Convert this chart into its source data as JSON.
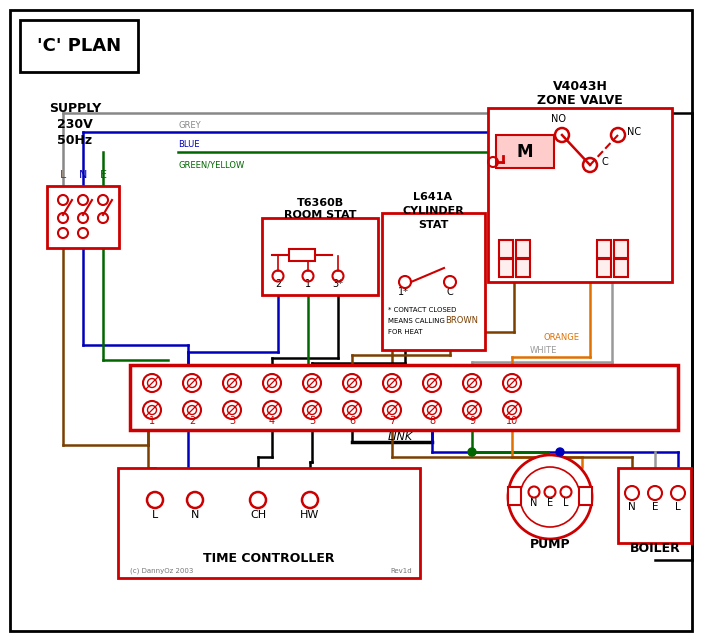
{
  "title": "'C' PLAN",
  "bg_color": "#ffffff",
  "red": "#cc0000",
  "black": "#000000",
  "blue": "#0000bb",
  "grey": "#888888",
  "green": "#006600",
  "brown": "#7B3F00",
  "orange": "#E07000",
  "white_wire": "#999999",
  "supply_lines": [
    "SUPPLY",
    "230V",
    "50Hz"
  ],
  "zone_valve_lines": [
    "V4043H",
    "ZONE VALVE"
  ],
  "room_stat_lines": [
    "T6360B",
    "ROOM STAT"
  ],
  "cyl_stat_lines": [
    "L641A",
    "CYLINDER",
    "STAT"
  ],
  "wire_labels": {
    "grey": "GREY",
    "blue": "BLUE",
    "green_yellow": "GREEN/YELLOW",
    "brown": "BROWN",
    "white": "WHITE",
    "orange": "ORANGE"
  },
  "terminal_labels": [
    "1",
    "2",
    "3",
    "4",
    "5",
    "6",
    "7",
    "8",
    "9",
    "10"
  ],
  "tc_terminals": [
    "L",
    "N",
    "CH",
    "HW"
  ],
  "pump_terminals": [
    "N",
    "E",
    "L"
  ],
  "boiler_terminals": [
    "N",
    "E",
    "L"
  ],
  "bottom_labels": [
    "TIME CONTROLLER",
    "PUMP",
    "BOILER"
  ],
  "link_label": "LINK",
  "footnote1": "(c) DannyOz 2003",
  "footnote2": "Rev1d"
}
